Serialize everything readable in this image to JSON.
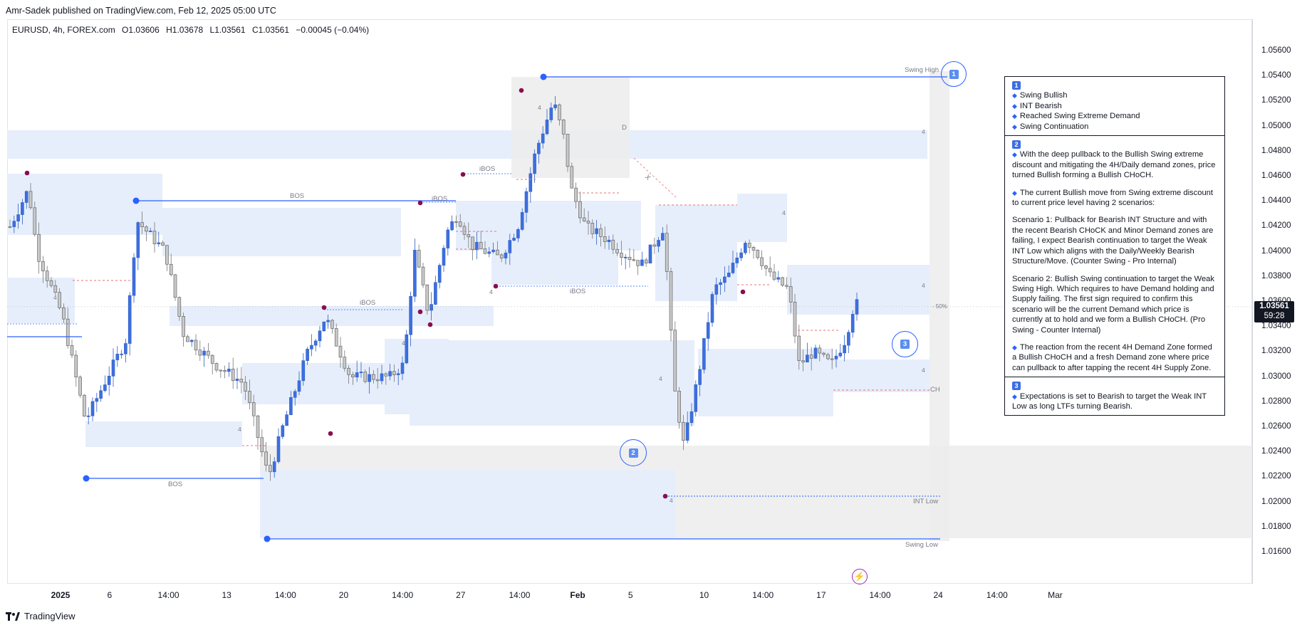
{
  "header": {
    "publisher_text": "Amr-Sadek published on TradingView.com, Feb 12, 2025 05:00 UTC"
  },
  "legend": {
    "symbol": "EURUSD, 4h, FOREX.com",
    "open_label": "O",
    "open": "1.03606",
    "high_label": "H",
    "high": "1.03678",
    "low_label": "L",
    "low": "1.03561",
    "close_label": "C",
    "close": "1.03561",
    "change": "−0.00045 (−0.04%)"
  },
  "price_tag": {
    "price": "1.03561",
    "countdown": "59:28"
  },
  "footer": {
    "brand": "TradingView"
  },
  "colors": {
    "bull_candle": "#3d6fe0",
    "bear_candle": "#c9c9c9",
    "zone_blue": "#e6eefc",
    "zone_grey": "#ececec",
    "line_blue": "#2962ff",
    "pivot_red": "#880e4f"
  },
  "chart_data": {
    "type": "candlestick",
    "symbol": "EURUSD",
    "timeframe": "4h",
    "y_ticks": [
      "1.05600",
      "1.05400",
      "1.05200",
      "1.05000",
      "1.04800",
      "1.04600",
      "1.04400",
      "1.04200",
      "1.04000",
      "1.03800",
      "1.03600",
      "1.03400",
      "1.03200",
      "1.03000",
      "1.02800",
      "1.02600",
      "1.02400",
      "1.02200",
      "1.02000",
      "1.01800",
      "1.01600"
    ],
    "ylim": [
      1.0152,
      1.0568
    ],
    "x_ticks": [
      {
        "label": "2025",
        "bold": true,
        "pos": 0.0429
      },
      {
        "label": "6",
        "bold": false,
        "pos": 0.0823
      },
      {
        "label": "14:00",
        "bold": false,
        "pos": 0.1296
      },
      {
        "label": "13",
        "bold": false,
        "pos": 0.1763
      },
      {
        "label": "14:00",
        "bold": false,
        "pos": 0.2236
      },
      {
        "label": "20",
        "bold": false,
        "pos": 0.2703
      },
      {
        "label": "14:00",
        "bold": false,
        "pos": 0.3176
      },
      {
        "label": "27",
        "bold": false,
        "pos": 0.3643
      },
      {
        "label": "14:00",
        "bold": false,
        "pos": 0.4116
      },
      {
        "label": "Feb",
        "bold": true,
        "pos": 0.4583
      },
      {
        "label": "5",
        "bold": false,
        "pos": 0.5007
      },
      {
        "label": "10",
        "bold": false,
        "pos": 0.5598
      },
      {
        "label": "14:00",
        "bold": false,
        "pos": 0.6071
      },
      {
        "label": "17",
        "bold": false,
        "pos": 0.6538
      },
      {
        "label": "14:00",
        "bold": false,
        "pos": 0.7011
      },
      {
        "label": "24",
        "bold": false,
        "pos": 0.7478
      },
      {
        "label": "14:00",
        "bold": false,
        "pos": 0.7951
      },
      {
        "label": "Mar",
        "bold": false,
        "pos": 0.8418
      }
    ],
    "swing_high": 1.0533,
    "swing_low": 1.0177,
    "int_low": 1.0211,
    "last_close": 1.03561,
    "annotations": [
      "Swing High",
      "Swing Low",
      "INT Low",
      "BOS",
      "BOS",
      "iBOS",
      "iBOS",
      "iBOS",
      "iBOS",
      "CH",
      "D",
      "- 50%",
      "X",
      "4"
    ],
    "markers": [
      "1",
      "2",
      "3"
    ]
  },
  "notes": {
    "s1": {
      "badge": "1",
      "items": [
        "Swing Bullish",
        "INT Bearish",
        "Reached Swing Extreme Demand",
        "Swing Continuation"
      ]
    },
    "s2": {
      "badge": "2",
      "p1": "With the deep pullback to the Bullish Swing extreme discount and mitigating the 4H/Daily demand zones, price turned Bullish forming a Bullish CHoCH.",
      "p2": "The current Bullish move from Swing extreme discount to current price level having 2 scenarios:",
      "p3": "Scenario 1: Pullback for Bearish INT Structure and with the recent Bearish CHoCK and Minor Demand zones are failing, I expect Bearish continuation to target the Weak INT Low which aligns with the Daily/Weekly Bearish Structure/Move. (Counter Swing - Pro Internal)",
      "p4": "Scenario 2: Bullish Swing continuation to target the Weak Swing High. Which requires to have Demand holding and Supply failing. The first sign required to confirm this scenario will be the current Demand which price is currently at to hold and we form a Bullish CHoCH. (Pro Swing - Counter Internal)",
      "p5": "The reaction from the recent 4H Demand Zone formed a Bullish CHoCH and a fresh Demand zone where price can pullback to after tapping the recent 4H Supply Zone."
    },
    "s3": {
      "badge": "3",
      "p1": "Expectations is set to Bearish to target the Weak INT Low as long LTFs turning Bearish."
    }
  }
}
